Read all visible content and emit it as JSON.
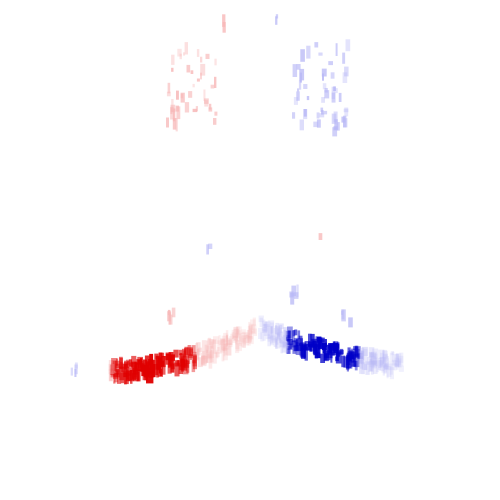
{
  "image": {
    "background_color": "#ffffff",
    "positive_color": "#e00000",
    "negative_color": "#0000c8",
    "pale_positive_color": "#f7b7b7",
    "pale_negative_color": "#b9b9f6"
  }
}
